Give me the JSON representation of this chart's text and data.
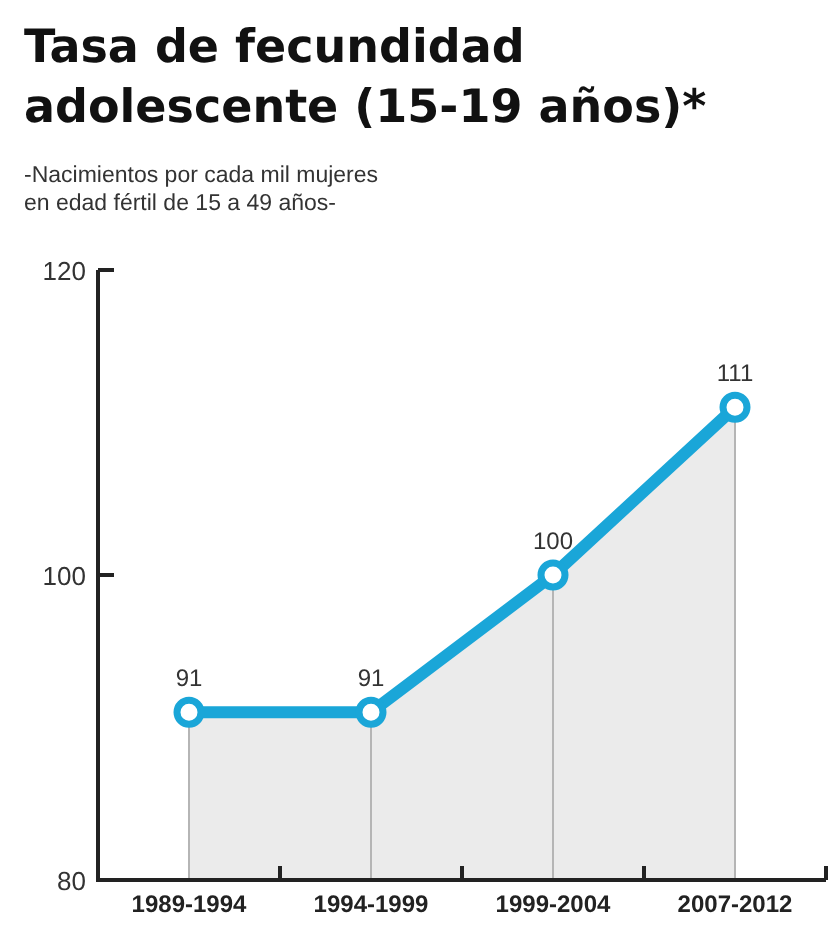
{
  "chart_data": {
    "type": "area",
    "title": "Tasa de fecundidad\nadolescente (15-19 años)*",
    "subtitle": "-Nacimientos por cada mil mujeres\nen edad fértil de 15 a 49 años-",
    "categories": [
      "1989-1994",
      "1994-1999",
      "1999-2004",
      "2007-2012"
    ],
    "series": [
      {
        "color": "#1aa6d8",
        "values": [
          91,
          91,
          100,
          111
        ]
      }
    ],
    "ylim": [
      80,
      120
    ],
    "yticks": [
      80,
      100,
      120
    ],
    "marker": "circle",
    "data_labels": true,
    "grid": "x"
  }
}
